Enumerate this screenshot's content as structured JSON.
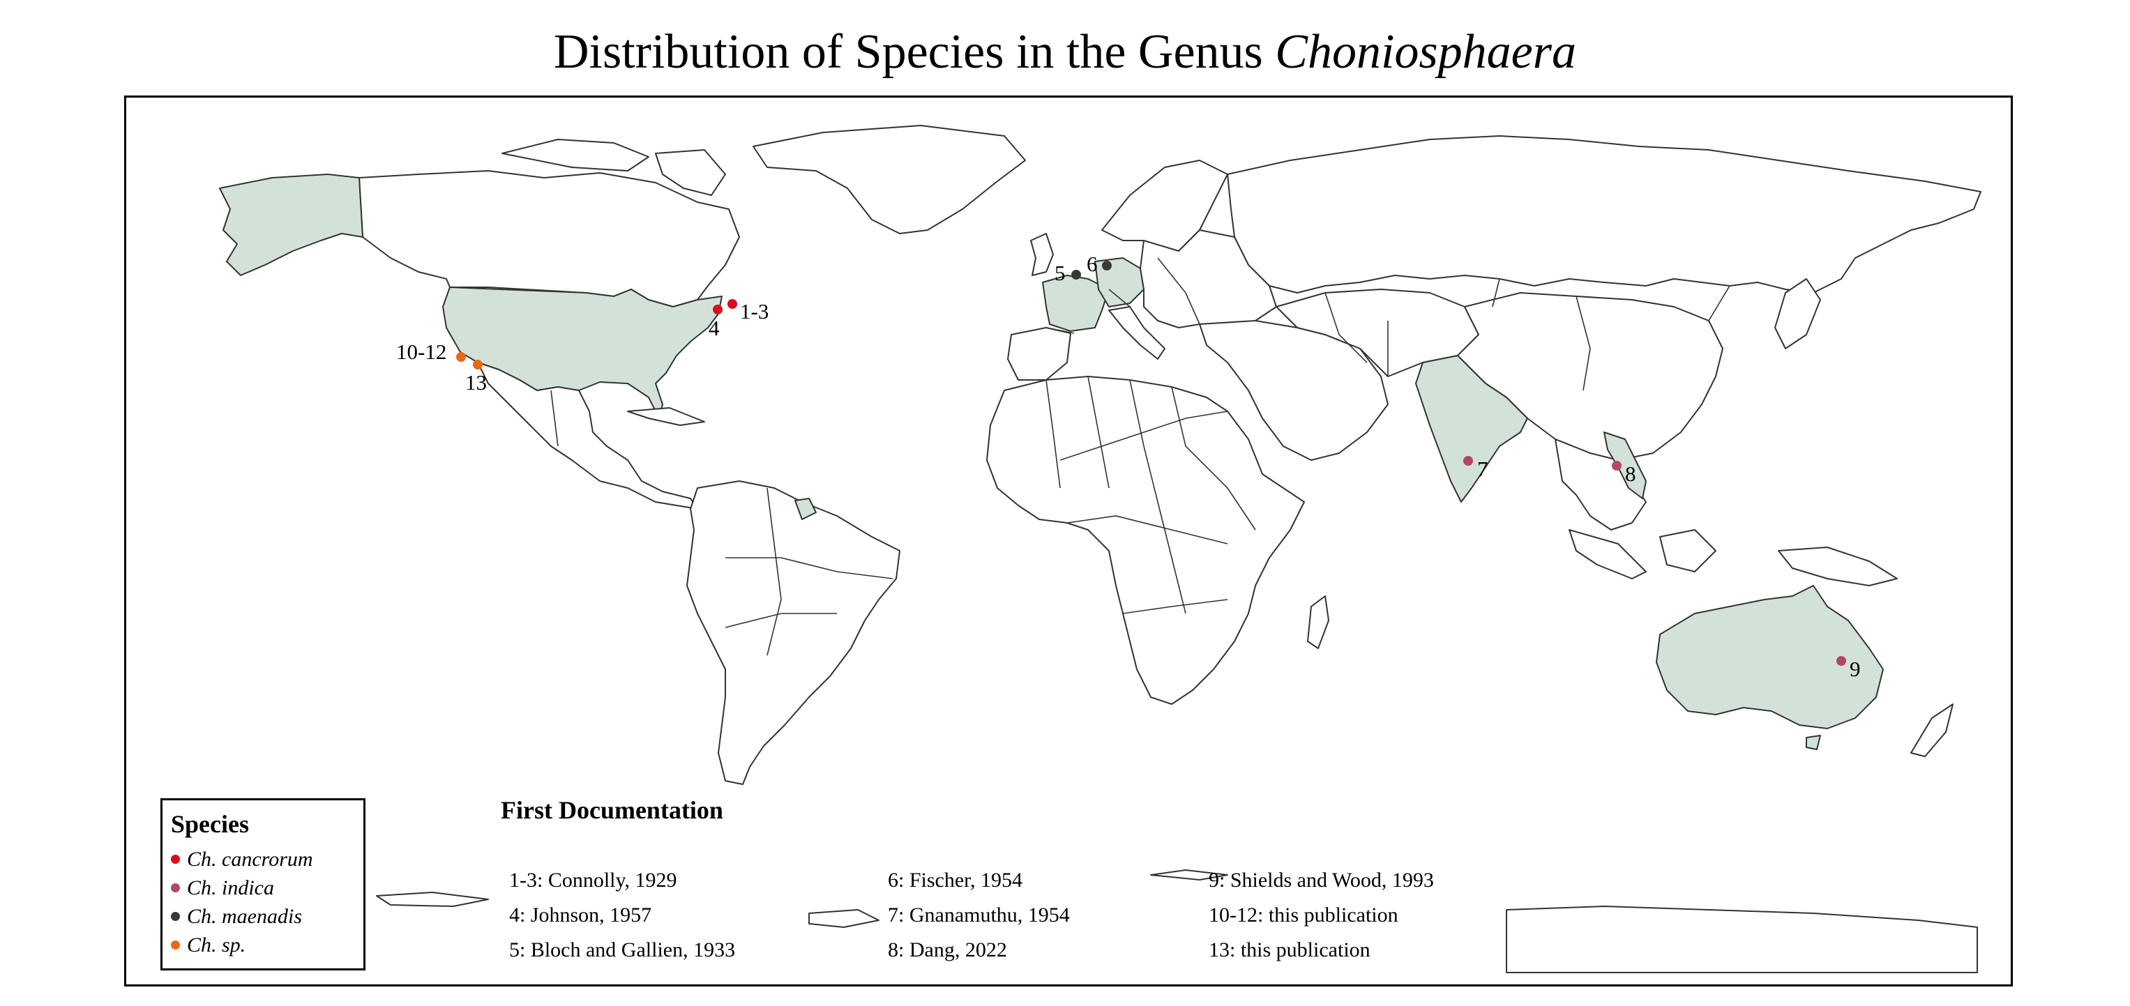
{
  "title": {
    "prefix": "Distribution of Species in the Genus ",
    "genus": "Choniosphaera"
  },
  "legend": {
    "title": "Species",
    "items": [
      {
        "label": "Ch. cancrorum",
        "color": "#d4111b"
      },
      {
        "label": "Ch. indica",
        "color": "#b04868"
      },
      {
        "label": "Ch. maenadis",
        "color": "#363b2d"
      },
      {
        "label": "Ch. sp.",
        "color": "#ea6a17"
      }
    ]
  },
  "map": {
    "highlight_color": "#d3e2d8",
    "highlighted_countries": [
      "United States",
      "France",
      "Germany",
      "India",
      "Vietnam",
      "Australia",
      "Suriname"
    ],
    "sites": [
      {
        "label": "1-3",
        "species": "Ch. cancrorum"
      },
      {
        "label": "4",
        "species": "Ch. cancrorum"
      },
      {
        "label": "5",
        "species": "Ch. maenadis"
      },
      {
        "label": "6",
        "species": "Ch. maenadis"
      },
      {
        "label": "7",
        "species": "Ch. indica"
      },
      {
        "label": "8",
        "species": "Ch. indica"
      },
      {
        "label": "9",
        "species": "Ch. indica"
      },
      {
        "label": "10-12",
        "species": "Ch. sp."
      },
      {
        "label": "13",
        "species": "Ch. sp."
      }
    ]
  },
  "first_documentation": {
    "title": "First Documentation",
    "refs": [
      "1-3: Connolly, 1929",
      "4: Johnson, 1957",
      "5: Bloch and Gallien, 1933",
      "6: Fischer, 1954",
      "7: Gnanamuthu, 1954",
      "8: Dang, 2022",
      "9: Shields and Wood, 1993",
      "10-12: this publication",
      "13: this publication"
    ]
  }
}
